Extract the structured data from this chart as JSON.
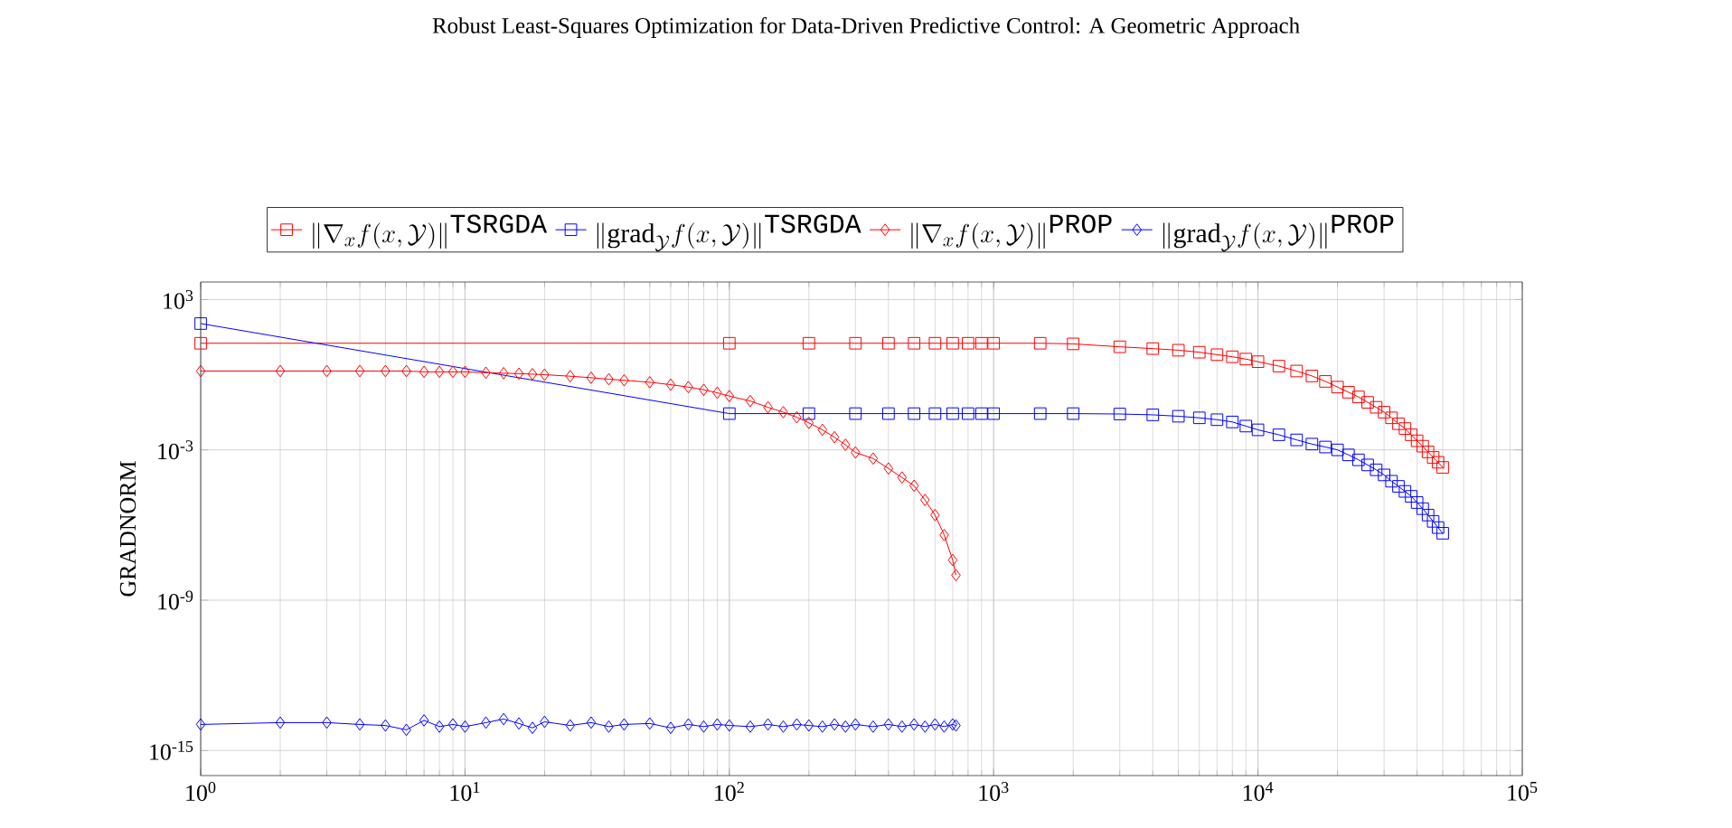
{
  "chart_data": {
    "type": "line",
    "title": "Robust Least-Squares Optimization for Data-Driven Predictive Control: A Geometric Approach",
    "ylabel": "GRADNORM",
    "log": "xy",
    "grid": true,
    "legend": "top",
    "line_style": "solid",
    "xlim": [
      1,
      100000
    ],
    "ylim": [
      1e-16,
      5000
    ],
    "xticks": [
      {
        "value": 1,
        "label": "10$^{0}$"
      },
      {
        "value": 10,
        "label": "10$^{1}$"
      },
      {
        "value": 100,
        "label": "10$^{2}$"
      },
      {
        "value": 1000,
        "label": "10$^{3}$"
      },
      {
        "value": 10000,
        "label": "10$^{4}$"
      },
      {
        "value": 100000,
        "label": "10$^{5}$"
      }
    ],
    "yticks": [
      {
        "value": 1e-15,
        "label": "10$^{-15}$"
      },
      {
        "value": 1e-09,
        "label": "10$^{-9}$"
      },
      {
        "value": 0.001,
        "label": "10$^{-3}$"
      },
      {
        "value": 1000,
        "label": "10$^{3}$"
      }
    ],
    "series": [
      {
        "name": "\\|\\nabla_x f(x,\\mathcal{Y})\\|^{\\texttt{TSRGDA}}",
        "color": "#ff0000",
        "marker": "square",
        "x": [
          1,
          100,
          200,
          300,
          400,
          500,
          600,
          700,
          800,
          900,
          1000,
          1500,
          2000,
          3000,
          4000,
          5000,
          6000,
          7000,
          8000,
          9000,
          10000,
          12000,
          14000,
          16000,
          18000,
          20000,
          22000,
          24000,
          26000,
          28000,
          30000,
          32000,
          34000,
          36000,
          38000,
          40000,
          42000,
          44000,
          46000,
          48000,
          50000
        ],
        "values": [
          18,
          18,
          18,
          18,
          18,
          18,
          18,
          18,
          18,
          18,
          18,
          18,
          17,
          13,
          11,
          9.5,
          7.9,
          6.3,
          5.2,
          4.2,
          3.3,
          2.2,
          1.4,
          0.89,
          0.54,
          0.32,
          0.2,
          0.13,
          0.079,
          0.05,
          0.032,
          0.019,
          0.011,
          0.0071,
          0.004,
          0.0023,
          0.0014,
          0.00083,
          0.0005,
          0.00032,
          0.0002
        ]
      },
      {
        "name": "\\|\\mathrm{grad}_{\\mathcal{Y}} f(x,\\mathcal{Y})\\|^{\\texttt{TSRGDA}}",
        "color": "#0000ff",
        "marker": "square",
        "x": [
          1,
          100,
          200,
          300,
          400,
          500,
          600,
          700,
          800,
          900,
          1000,
          1500,
          2000,
          3000,
          4000,
          5000,
          6000,
          7000,
          8000,
          9000,
          10000,
          12000,
          14000,
          16000,
          18000,
          20000,
          22000,
          24000,
          26000,
          28000,
          30000,
          32000,
          34000,
          36000,
          38000,
          40000,
          42000,
          44000,
          46000,
          48000,
          50000
        ],
        "values": [
          110,
          0.028,
          0.028,
          0.028,
          0.028,
          0.028,
          0.028,
          0.028,
          0.028,
          0.028,
          0.028,
          0.028,
          0.028,
          0.027,
          0.025,
          0.022,
          0.019,
          0.016,
          0.013,
          0.0089,
          0.0063,
          0.004,
          0.0025,
          0.0017,
          0.0013,
          0.001,
          0.00063,
          0.0004,
          0.00025,
          0.00016,
          0.0001,
          5.6e-05,
          3.5e-05,
          2.2e-05,
          1.4e-05,
          7.9e-06,
          4.5e-06,
          2.5e-06,
          1.4e-06,
          7.9e-07,
          4.7e-07
        ]
      },
      {
        "name": "\\|\\nabla_x f(x,\\mathcal{Y})\\|^{\\texttt{PROP}}",
        "color": "#ff0000",
        "marker": "diamond",
        "x": [
          1,
          2,
          3,
          4,
          5,
          6,
          7,
          8,
          9,
          10,
          12,
          14,
          16,
          18,
          20,
          25,
          30,
          35,
          40,
          50,
          60,
          70,
          80,
          90,
          100,
          120,
          140,
          160,
          180,
          200,
          225,
          250,
          275,
          300,
          350,
          400,
          450,
          500,
          550,
          600,
          650,
          700,
          720
        ],
        "values": [
          1.4,
          1.4,
          1.4,
          1.4,
          1.4,
          1.4,
          1.3,
          1.3,
          1.3,
          1.3,
          1.2,
          1.15,
          1.1,
          1.05,
          1.0,
          0.87,
          0.76,
          0.66,
          0.6,
          0.5,
          0.4,
          0.32,
          0.25,
          0.19,
          0.14,
          0.089,
          0.05,
          0.032,
          0.02,
          0.012,
          0.0063,
          0.0032,
          0.0016,
          0.00079,
          0.00045,
          0.00018,
          7.9e-05,
          3.7e-05,
          1e-05,
          2.5e-06,
          4e-07,
          4e-08,
          1e-08
        ]
      },
      {
        "name": "\\|\\mathrm{grad}_{\\mathcal{Y}} f(x,\\mathcal{Y})\\|^{\\texttt{PROP}}",
        "color": "#0000ff",
        "marker": "diamond",
        "x": [
          1,
          2,
          3,
          4,
          5,
          6,
          7,
          8,
          9,
          10,
          12,
          14,
          16,
          18,
          20,
          25,
          30,
          35,
          40,
          50,
          60,
          70,
          80,
          90,
          100,
          120,
          140,
          160,
          180,
          200,
          225,
          250,
          275,
          300,
          350,
          400,
          450,
          500,
          550,
          600,
          650,
          700,
          720
        ],
        "values": [
          1.1e-14,
          1.3e-14,
          1.3e-14,
          1.1e-14,
          1e-14,
          6.7e-15,
          1.6e-14,
          9e-15,
          1.1e-14,
          9e-15,
          1.3e-14,
          1.8e-14,
          1.2e-14,
          8e-15,
          1.4e-14,
          1e-14,
          1.3e-14,
          9e-15,
          1.1e-14,
          1.2e-14,
          8e-15,
          1.1e-14,
          9e-15,
          1.1e-14,
          1e-14,
          9e-15,
          1.1e-14,
          9e-15,
          1.1e-14,
          1e-14,
          9e-15,
          1.1e-14,
          9e-15,
          1.1e-14,
          9e-15,
          1.1e-14,
          9e-15,
          1.1e-14,
          9e-15,
          1.1e-14,
          9e-15,
          1.1e-14,
          1e-14
        ]
      }
    ]
  }
}
